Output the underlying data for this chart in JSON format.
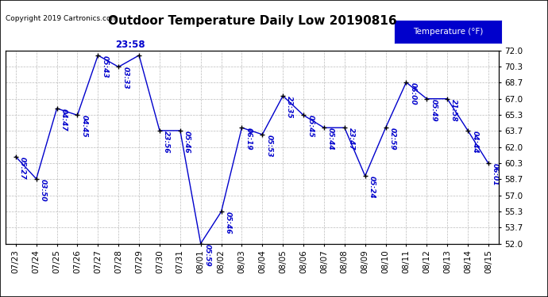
{
  "title": "Outdoor Temperature Daily Low 20190816",
  "copyright": "Copyright 2019 Cartronics.com",
  "legend_label": "Temperature (°F)",
  "categories": [
    "07/23",
    "07/24",
    "07/25",
    "07/26",
    "07/27",
    "07/28",
    "07/29",
    "07/30",
    "07/31",
    "08/01",
    "08/02",
    "08/03",
    "08/04",
    "08/05",
    "08/06",
    "08/07",
    "08/08",
    "08/09",
    "08/10",
    "08/11",
    "08/12",
    "08/13",
    "08/14",
    "08/15"
  ],
  "values": [
    61.0,
    58.7,
    66.0,
    65.3,
    71.5,
    70.3,
    71.5,
    63.7,
    63.7,
    52.0,
    55.3,
    64.0,
    63.3,
    67.3,
    65.3,
    64.0,
    64.0,
    59.0,
    64.0,
    68.7,
    67.0,
    67.0,
    63.7,
    60.3
  ],
  "annotations": [
    "05:27",
    "03:50",
    "04:47",
    "04:45",
    "05:43",
    "03:33",
    "23:58",
    "23:56",
    "05:46",
    "05:59",
    "05:46",
    "06:19",
    "05:53",
    "23:35",
    "05:45",
    "05:44",
    "23:47",
    "05:24",
    "02:59",
    "06:00",
    "05:49",
    "21:58",
    "04:44",
    "06:01"
  ],
  "special_idx": 6,
  "ylim": [
    52.0,
    72.0
  ],
  "yticks": [
    52.0,
    53.7,
    55.3,
    57.0,
    58.7,
    60.3,
    62.0,
    63.7,
    65.3,
    67.0,
    68.7,
    70.3,
    72.0
  ],
  "line_color": "#0000cc",
  "marker_color": "#000000",
  "bg_color": "#ffffff",
  "grid_color": "#bbbbbb",
  "annotation_color": "#0000cc",
  "legend_bg": "#0000cc",
  "legend_text_color": "#ffffff",
  "title_fontsize": 11,
  "annotation_fontsize": 6.5,
  "tick_fontsize": 7.5,
  "copyright_fontsize": 6.5
}
